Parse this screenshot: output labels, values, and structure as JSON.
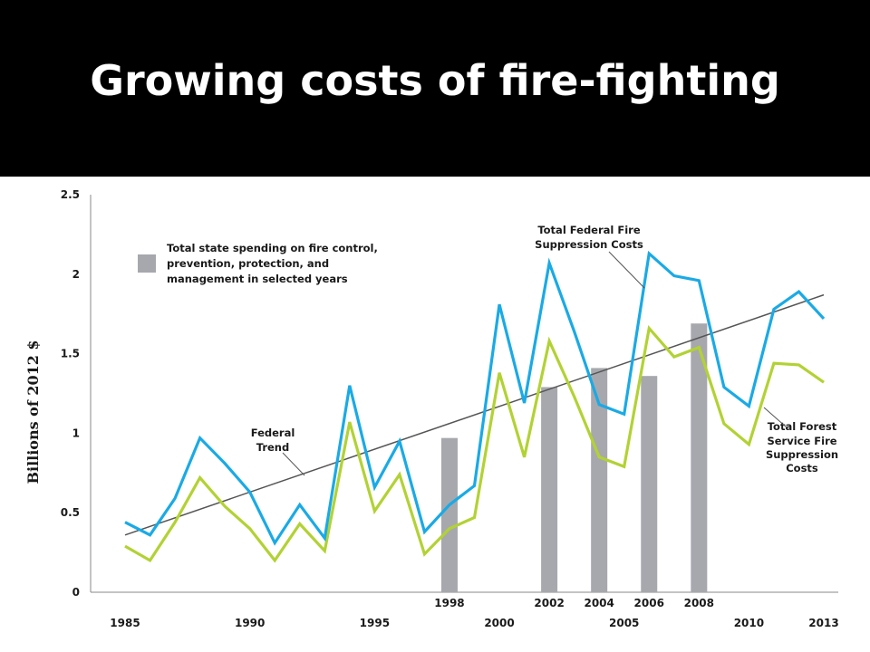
{
  "title": "Growing costs of fire-fighting",
  "chart_data": {
    "type": "line",
    "ylabel": "Billions of 2012 $",
    "ylim": [
      0,
      2.5
    ],
    "yticks": [
      "0",
      "0.5",
      "1",
      "1.5",
      "2",
      "2.5"
    ],
    "x": [
      1985,
      1986,
      1987,
      1988,
      1989,
      1990,
      1991,
      1992,
      1993,
      1994,
      1995,
      1996,
      1997,
      1998,
      1999,
      2000,
      2001,
      2002,
      2003,
      2004,
      2005,
      2006,
      2007,
      2008,
      2009,
      2010,
      2011,
      2012,
      2013
    ],
    "x_bottom_ticks": [
      "1985",
      "1990",
      "1995",
      "2000",
      "2005",
      "2010",
      "2013"
    ],
    "x_bar_ticks": [
      "1998",
      "2002",
      "2004",
      "2006",
      "2008"
    ],
    "series": [
      {
        "name": "Total Federal Fire Suppression Costs",
        "color": "#1aaae5",
        "values": [
          0.44,
          0.36,
          0.59,
          0.97,
          0.81,
          0.63,
          0.31,
          0.55,
          0.34,
          1.3,
          0.66,
          0.95,
          0.38,
          0.55,
          0.67,
          1.81,
          1.19,
          2.07,
          1.64,
          1.18,
          1.12,
          2.13,
          1.99,
          1.96,
          1.29,
          1.17,
          1.78,
          1.89,
          1.72
        ]
      },
      {
        "name": "Total Forest Service Fire Suppression Costs",
        "color": "#b2d234",
        "values": [
          0.29,
          0.2,
          0.44,
          0.72,
          0.54,
          0.4,
          0.2,
          0.43,
          0.26,
          1.07,
          0.51,
          0.74,
          0.24,
          0.4,
          0.47,
          1.38,
          0.85,
          1.58,
          1.23,
          0.85,
          0.79,
          1.66,
          1.48,
          1.54,
          1.06,
          0.93,
          1.44,
          1.43,
          1.32
        ]
      }
    ],
    "bars": {
      "name": "Total state spending on fire control, prevention, protection, and management in selected years",
      "color": "#a7a8ad",
      "years": [
        1998,
        2002,
        2004,
        2006,
        2008
      ],
      "values": [
        0.97,
        1.29,
        1.41,
        1.36,
        1.69
      ]
    },
    "trend": {
      "name": "Federal Trend",
      "color": "#555555",
      "start": [
        1985,
        0.36
      ],
      "end": [
        2013,
        1.87
      ]
    },
    "annotations": {
      "legend_line1": "Total state spending on fire control,",
      "legend_line2": "prevention, protection, and",
      "legend_line3": "management in selected years",
      "federal_line1": "Total Federal Fire",
      "federal_line2": "Suppression Costs",
      "trend_line1": "Federal",
      "trend_line2": "Trend",
      "forest_line1": "Total Forest",
      "forest_line2": "Service Fire",
      "forest_line3": "Suppression",
      "forest_line4": "Costs"
    }
  }
}
